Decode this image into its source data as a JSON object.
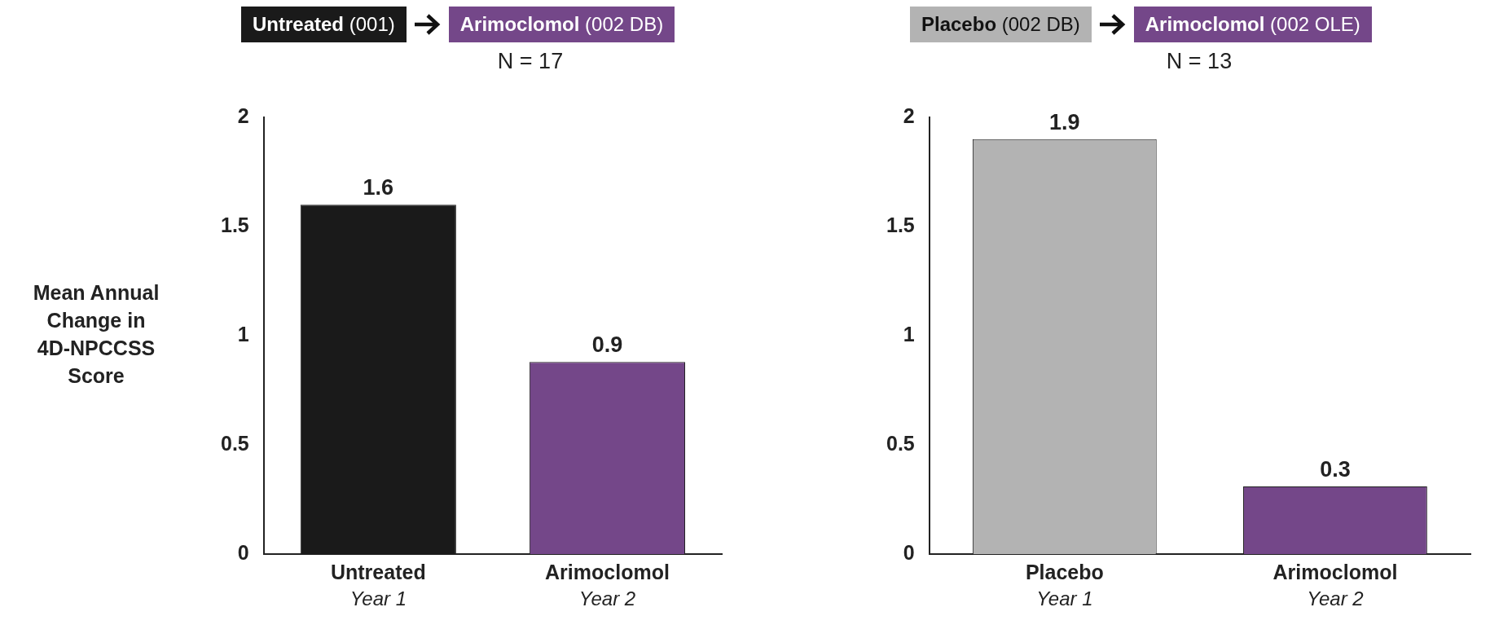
{
  "chart_data": [
    {
      "type": "bar",
      "categories": [
        "Untreated\nYear 1",
        "Arimoclomol\nYear 2"
      ],
      "values": [
        1.6,
        0.88
      ],
      "colors": [
        "#1a1a1a",
        "#744789"
      ],
      "value_labels": [
        "1.6",
        "0.9"
      ],
      "ylabel": "Mean Annual Change in 4D-NPCCSS Score",
      "ylim": [
        0,
        2
      ],
      "yticks": [
        0,
        0.5,
        1,
        1.5,
        2
      ],
      "grid": false,
      "legend": false,
      "annotations": [
        "Untreated (001)",
        "Arimoclomol (002 DB)",
        "N = 17"
      ]
    },
    {
      "type": "bar",
      "categories": [
        "Placebo\nYear 1",
        "Arimoclomol\nYear 2"
      ],
      "values": [
        1.9,
        0.31
      ],
      "colors": [
        "#b3b3b3",
        "#744789"
      ],
      "value_labels": [
        "1.9",
        "0.3"
      ],
      "ylim": [
        0,
        2
      ],
      "yticks": [
        0,
        0.5,
        1,
        1.5,
        2
      ],
      "grid": false,
      "legend": false,
      "annotations": [
        "Placebo (002 DB)",
        "Arimoclomol (002 OLE)",
        "N = 13"
      ]
    }
  ]
}
